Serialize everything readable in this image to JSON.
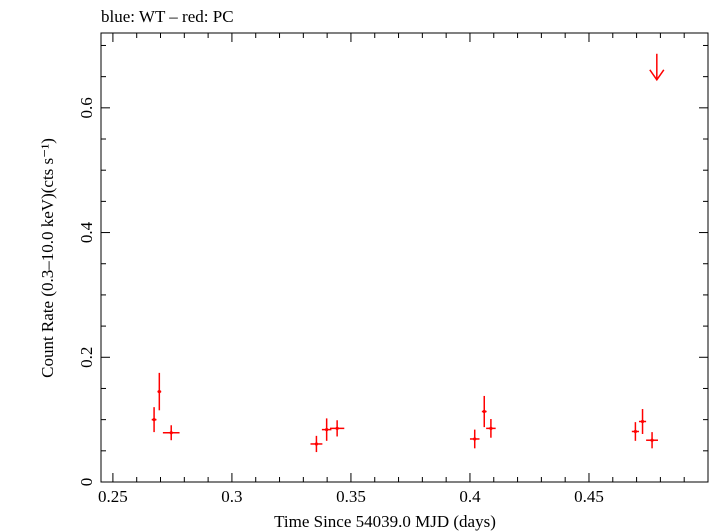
{
  "title": "blue: WT – red: PC",
  "chart_data": {
    "type": "scatter",
    "title": "blue: WT – red: PC",
    "xlabel": "Time Since 54039.0 MJD (days)",
    "ylabel": "Count Rate (0.3–10.0 keV)(cts s⁻¹)",
    "xlim": [
      0.245,
      0.5
    ],
    "ylim": [
      0,
      0.72
    ],
    "x_ticks": [
      0.25,
      0.3,
      0.35,
      0.4,
      0.45
    ],
    "x_tick_labels": [
      "0.25",
      "0.3",
      "0.35",
      "0.4",
      "0.45"
    ],
    "y_ticks": [
      0,
      0.2,
      0.4,
      0.6
    ],
    "y_tick_labels": [
      "0",
      "0.2",
      "0.4",
      "0.6"
    ],
    "series": [
      {
        "name": "PC",
        "color": "#ff0000",
        "points": [
          {
            "x": 0.2673,
            "y": 0.1,
            "xerr": 0.001,
            "yerr": 0.02
          },
          {
            "x": 0.2695,
            "y": 0.145,
            "xerr": 0.0008,
            "yerr": 0.03
          },
          {
            "x": 0.2745,
            "y": 0.079,
            "xerr": 0.0035,
            "yerr": 0.012
          },
          {
            "x": 0.3355,
            "y": 0.061,
            "xerr": 0.0025,
            "yerr": 0.013
          },
          {
            "x": 0.3398,
            "y": 0.084,
            "xerr": 0.002,
            "yerr": 0.018
          },
          {
            "x": 0.3442,
            "y": 0.086,
            "xerr": 0.003,
            "yerr": 0.013
          },
          {
            "x": 0.402,
            "y": 0.069,
            "xerr": 0.002,
            "yerr": 0.015
          },
          {
            "x": 0.406,
            "y": 0.113,
            "xerr": 0.001,
            "yerr": 0.025
          },
          {
            "x": 0.4088,
            "y": 0.086,
            "xerr": 0.002,
            "yerr": 0.015
          },
          {
            "x": 0.4695,
            "y": 0.081,
            "xerr": 0.0015,
            "yerr": 0.015
          },
          {
            "x": 0.4725,
            "y": 0.097,
            "xerr": 0.0015,
            "yerr": 0.02
          },
          {
            "x": 0.4765,
            "y": 0.067,
            "xerr": 0.0025,
            "yerr": 0.013
          }
        ],
        "upper_limits": [
          {
            "x": 0.4785,
            "y": 0.645
          }
        ]
      }
    ]
  }
}
